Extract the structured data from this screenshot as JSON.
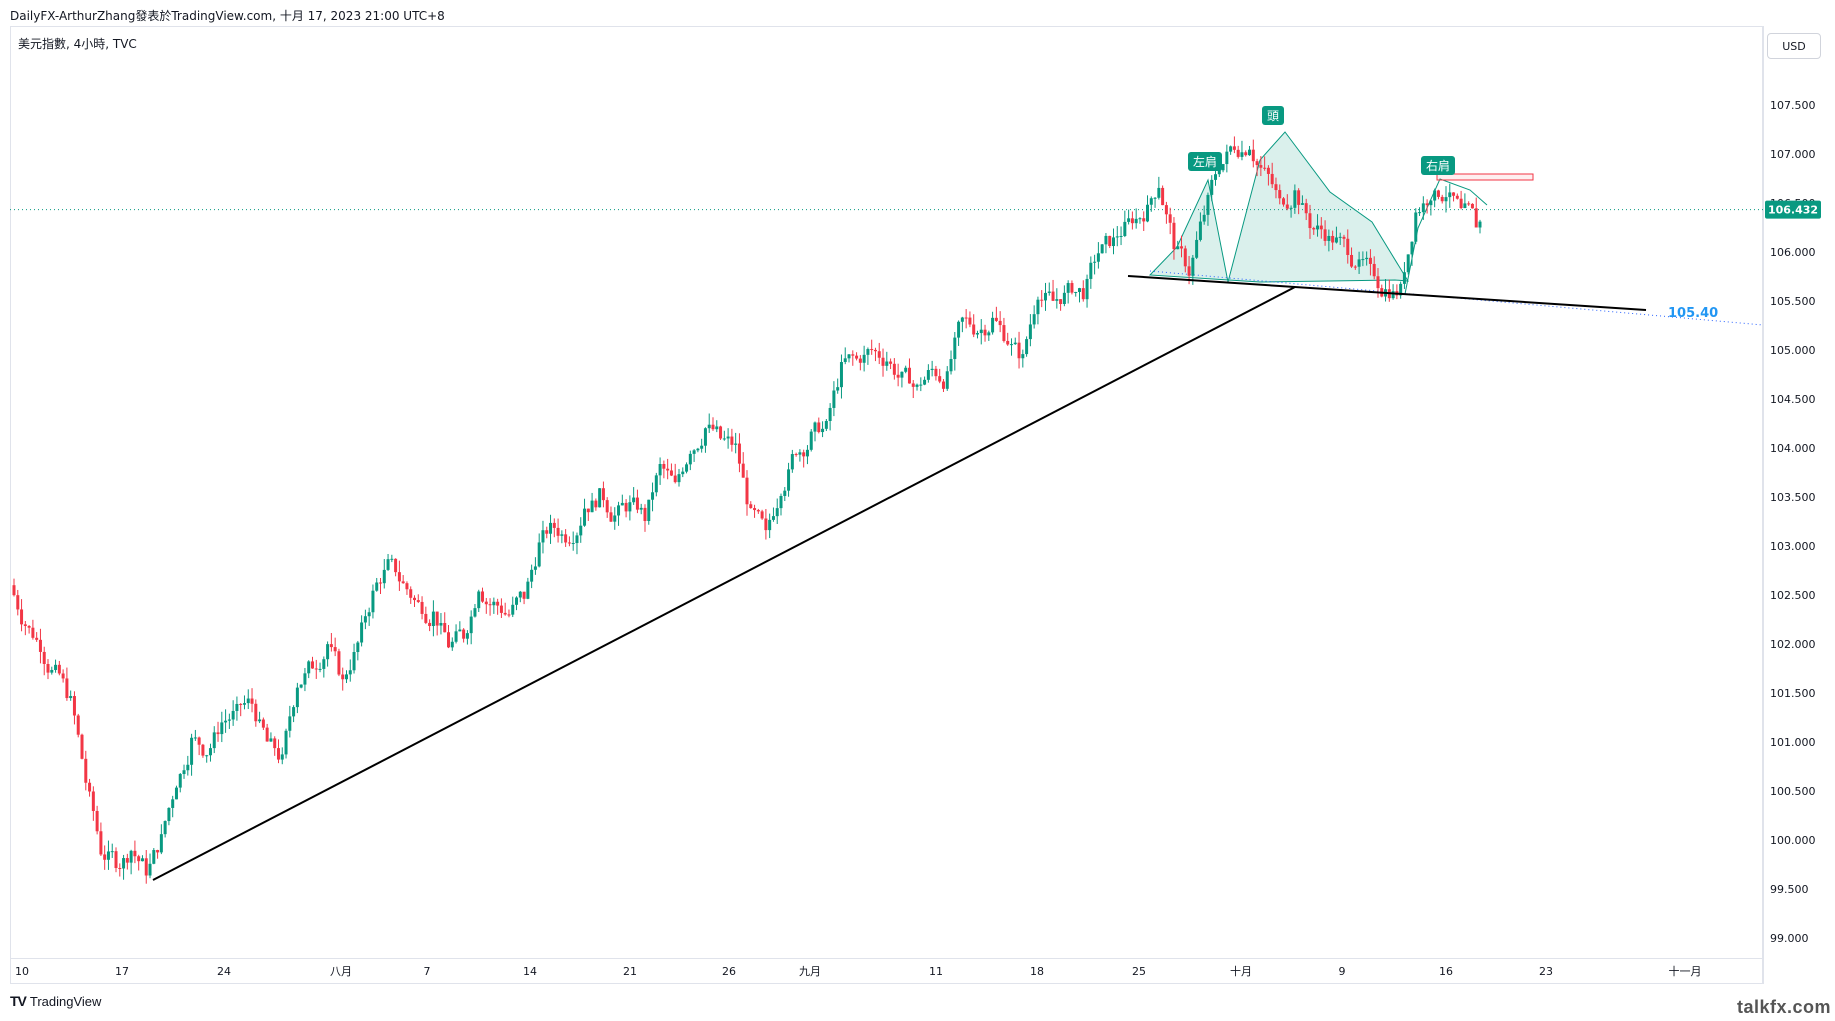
{
  "header": {
    "publisher_line": "DailyFX-ArthurZhang發表於TradingView.com, 十月 17, 2023 21:00 UTC+8"
  },
  "symbol_line": "美元指數, 4小時, TVC",
  "currency": "USD",
  "footer": {
    "logo_text": "TradingView",
    "watermark": "talkfx.com"
  },
  "chart_data": {
    "type": "candlestick",
    "ylim": [
      98.8,
      108.1
    ],
    "y_ticks": [
      "99.000",
      "99.500",
      "100.000",
      "100.500",
      "101.000",
      "101.500",
      "102.000",
      "102.500",
      "103.000",
      "103.500",
      "104.000",
      "104.500",
      "105.000",
      "105.500",
      "106.000",
      "106.500",
      "107.000",
      "107.500"
    ],
    "x_ticks": [
      "10",
      "17",
      "24",
      "八月",
      "7",
      "14",
      "21",
      "26",
      "九月",
      "11",
      "18",
      "25",
      "十月",
      "9",
      "16",
      "23",
      "十一月"
    ],
    "last_price": "106.432",
    "annotations": {
      "left_shoulder": "左肩",
      "head": "頭",
      "right_shoulder": "右肩",
      "neckline_label": "105.40"
    },
    "series_ohlc_anchor_closes": [
      102.2,
      102.0,
      101.7,
      101.4,
      100.6,
      99.9,
      99.8,
      99.9,
      99.7,
      100.0,
      100.6,
      101.0,
      100.9,
      101.2,
      101.3,
      101.4,
      101.0,
      100.8,
      101.6,
      101.8,
      102.0,
      101.6,
      102.0,
      102.5,
      102.8,
      102.6,
      102.4,
      102.3,
      102.0,
      102.1,
      102.6,
      102.4,
      102.3,
      102.5,
      103.0,
      103.2,
      103.1,
      103.4,
      103.5,
      103.3,
      103.4,
      103.3,
      103.8,
      103.6,
      104.0,
      104.2,
      104.1,
      104.0,
      103.3,
      103.1,
      103.6,
      104.0,
      104.1,
      104.2,
      104.8,
      104.9,
      105.0,
      104.9,
      104.7,
      104.6,
      104.8,
      104.7,
      105.3,
      105.2,
      105.3,
      105.1,
      104.9,
      105.6,
      105.5,
      105.6,
      105.6,
      106.0,
      106.1,
      106.3,
      106.4,
      106.7,
      106.1,
      105.8,
      106.4,
      106.9,
      107.1,
      107.1,
      106.8,
      106.5,
      106.6,
      106.3,
      106.2,
      106.1,
      105.9,
      105.8,
      105.6,
      105.6,
      106.4,
      106.6,
      106.6,
      106.4,
      106.3,
      106.432
    ]
  }
}
